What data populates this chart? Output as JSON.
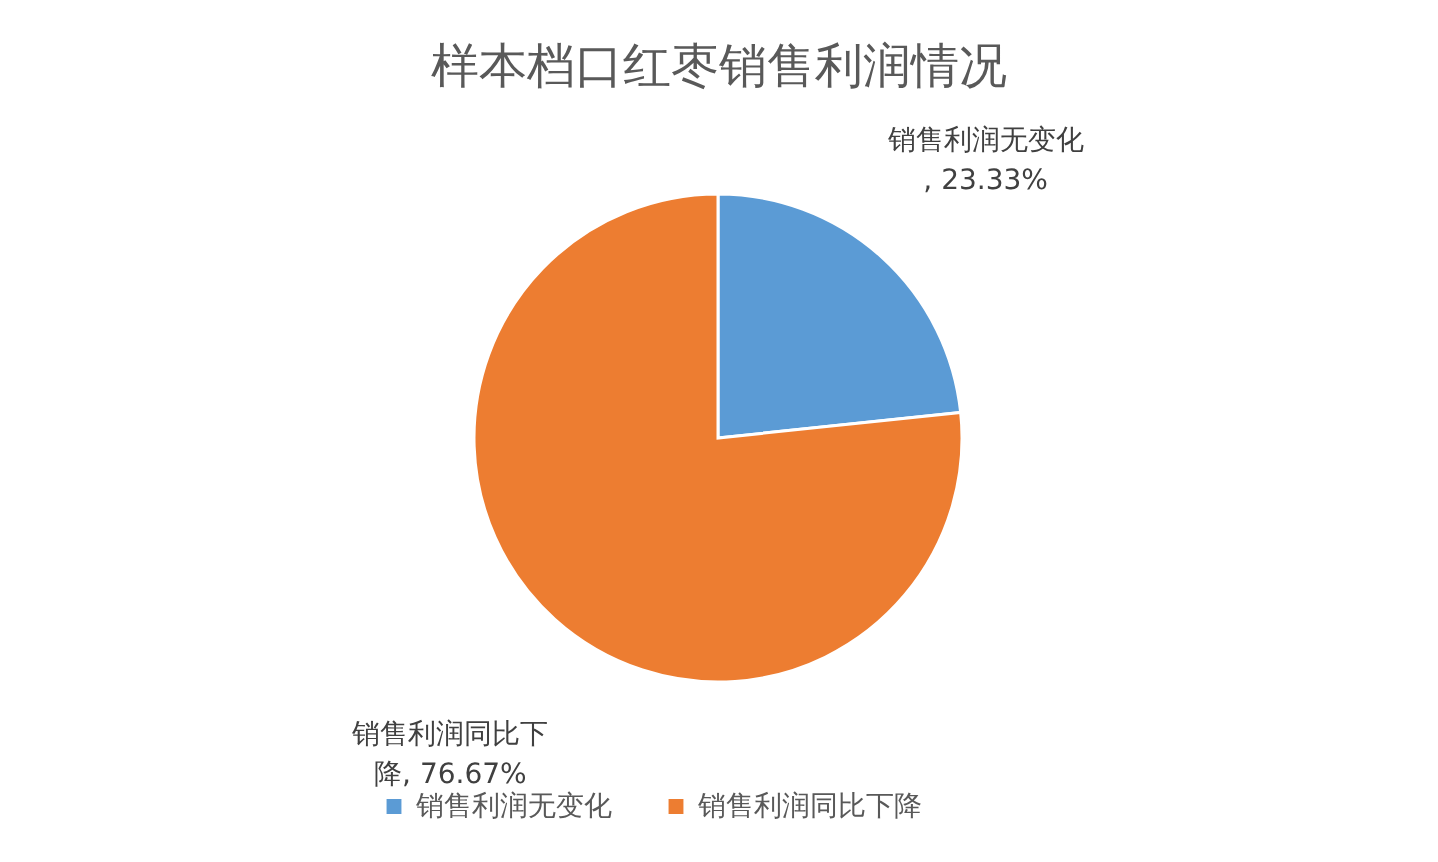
{
  "chart_data": {
    "type": "pie",
    "title": "样本档口红枣销售利润情况",
    "categories": [
      "销售利润无变化",
      "销售利润同比下降"
    ],
    "values": [
      23.33,
      76.67
    ],
    "colors": [
      "#5b9bd5",
      "#ed7d31"
    ],
    "value_labels": [
      "销售利润无变化, 23.33%",
      "销售利润同比下降, 76.67%"
    ],
    "legend": "bottom"
  }
}
